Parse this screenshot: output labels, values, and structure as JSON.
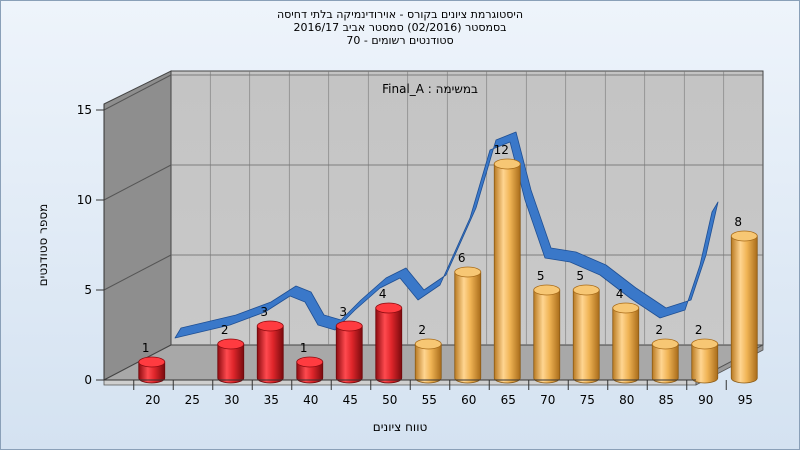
{
  "chart_data": {
    "type": "bar",
    "title_lines": [
      "היסטוגרמת ציונים בקורס - אוירודינמיקה בלתי דחיסה",
      "בסמסטר (02/2016) סמסטר אביב 2016/17",
      "סטודנטים רשומים - 70"
    ],
    "annotation": "במשימה : Final_A",
    "xlabel": "טווח ציונים",
    "ylabel": "מספר סטודנטים",
    "x_ticks": [
      "20",
      "25",
      "30",
      "35",
      "40",
      "45",
      "50",
      "55",
      "60",
      "65",
      "70",
      "75",
      "80",
      "85",
      "90",
      "95"
    ],
    "y_ticks": [
      "0",
      "5",
      "10",
      "15"
    ],
    "ylim": [
      0,
      15
    ],
    "bars": [
      {
        "x": 20,
        "value": 1,
        "color": "red"
      },
      {
        "x": 30,
        "value": 2,
        "color": "red"
      },
      {
        "x": 35,
        "value": 3,
        "color": "red"
      },
      {
        "x": 40,
        "value": 1,
        "color": "red"
      },
      {
        "x": 45,
        "value": 3,
        "color": "red"
      },
      {
        "x": 50,
        "value": 4,
        "color": "red"
      },
      {
        "x": 55,
        "value": 2,
        "color": "orange"
      },
      {
        "x": 60,
        "value": 6,
        "color": "orange"
      },
      {
        "x": 65,
        "value": 12,
        "color": "orange"
      },
      {
        "x": 70,
        "value": 5,
        "color": "orange"
      },
      {
        "x": 75,
        "value": 5,
        "color": "orange"
      },
      {
        "x": 80,
        "value": 4,
        "color": "orange"
      },
      {
        "x": 85,
        "value": 2,
        "color": "orange"
      },
      {
        "x": 90,
        "value": 2,
        "color": "orange"
      },
      {
        "x": 95,
        "value": 8,
        "color": "orange"
      }
    ],
    "curve_color": "#3a78c9",
    "colors": {
      "red": "#e0262b",
      "orange": "#f0b455"
    }
  }
}
